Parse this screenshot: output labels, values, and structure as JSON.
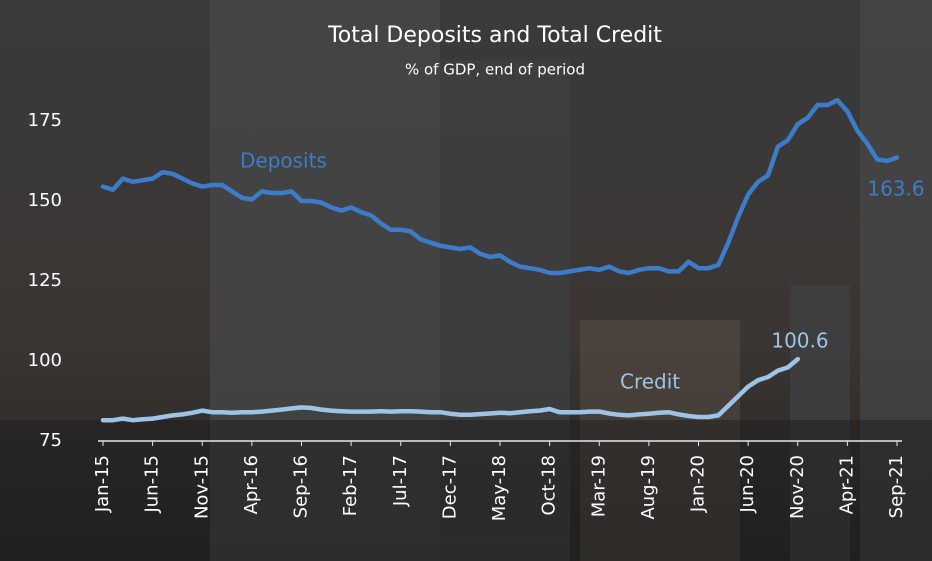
{
  "chart_data": {
    "type": "line",
    "title": "Total Deposits and Total Credit",
    "subtitle": "% of GDP, end of period",
    "categories": [
      "Jan-15",
      null,
      null,
      null,
      null,
      "Jun-15",
      null,
      null,
      null,
      null,
      "Nov-15",
      null,
      null,
      null,
      null,
      "Apr-16",
      null,
      null,
      null,
      null,
      "Sep-16",
      null,
      null,
      null,
      null,
      "Feb-17",
      null,
      null,
      null,
      null,
      "Jul-17",
      null,
      null,
      null,
      null,
      "Dec-17",
      null,
      null,
      null,
      null,
      "May-18",
      null,
      null,
      null,
      null,
      "Oct-18",
      null,
      null,
      null,
      null,
      "Mar-19",
      null,
      null,
      null,
      null,
      "Aug-19",
      null,
      null,
      null,
      null,
      "Jan-20",
      null,
      null,
      null,
      null,
      "Jun-20",
      null,
      null,
      null,
      null,
      "Nov-20",
      null,
      null,
      null,
      null,
      "Apr-21",
      null,
      null,
      null,
      null,
      "Sep-21"
    ],
    "series": [
      {
        "name": "Deposits",
        "color": "#3d7cc9",
        "values": [
          154.5,
          153.5,
          157,
          156,
          156.5,
          157,
          159,
          158.5,
          157,
          155.5,
          154.5,
          155,
          155,
          153,
          151,
          150.5,
          153,
          152.5,
          152.5,
          153,
          150,
          150,
          149.5,
          148,
          147,
          148,
          146.5,
          145.5,
          143,
          141,
          141,
          140.5,
          138,
          137,
          136,
          135.5,
          135,
          135.5,
          133.5,
          132.5,
          133,
          131,
          129.5,
          129,
          128.5,
          127.5,
          127.5,
          128,
          128.5,
          129,
          128.5,
          129.5,
          128,
          127.5,
          128.5,
          129,
          129,
          128,
          128,
          131,
          129,
          129,
          130,
          137,
          145,
          152,
          156,
          158,
          167,
          169,
          174,
          176,
          180,
          180,
          181.5,
          178,
          172,
          168,
          163,
          162.5,
          163.6
        ]
      },
      {
        "name": "Credit",
        "color": "#9dc3e6",
        "values": [
          81.5,
          81.5,
          82,
          81.5,
          81.8,
          82,
          82.5,
          83,
          83.3,
          83.8,
          84.5,
          84,
          84,
          83.8,
          84,
          84,
          84.2,
          84.5,
          84.8,
          85.2,
          85.5,
          85.3,
          84.8,
          84.5,
          84.3,
          84.2,
          84.2,
          84.2,
          84.3,
          84.2,
          84.3,
          84.3,
          84.2,
          84,
          84,
          83.5,
          83.2,
          83.2,
          83.4,
          83.6,
          83.8,
          83.7,
          84,
          84.3,
          84.5,
          85,
          84,
          84,
          84,
          84.2,
          84.2,
          83.6,
          83.2,
          83,
          83.3,
          83.5,
          83.8,
          84,
          83.3,
          82.8,
          82.5,
          82.5,
          83,
          86,
          89,
          92,
          94,
          95,
          97,
          98,
          100.6,
          null,
          null,
          null,
          null,
          null,
          null,
          null,
          null,
          null,
          null
        ]
      }
    ],
    "ylim": [
      75,
      185
    ],
    "yticks": [
      75,
      100,
      125,
      150,
      175
    ],
    "grid": false
  }
}
